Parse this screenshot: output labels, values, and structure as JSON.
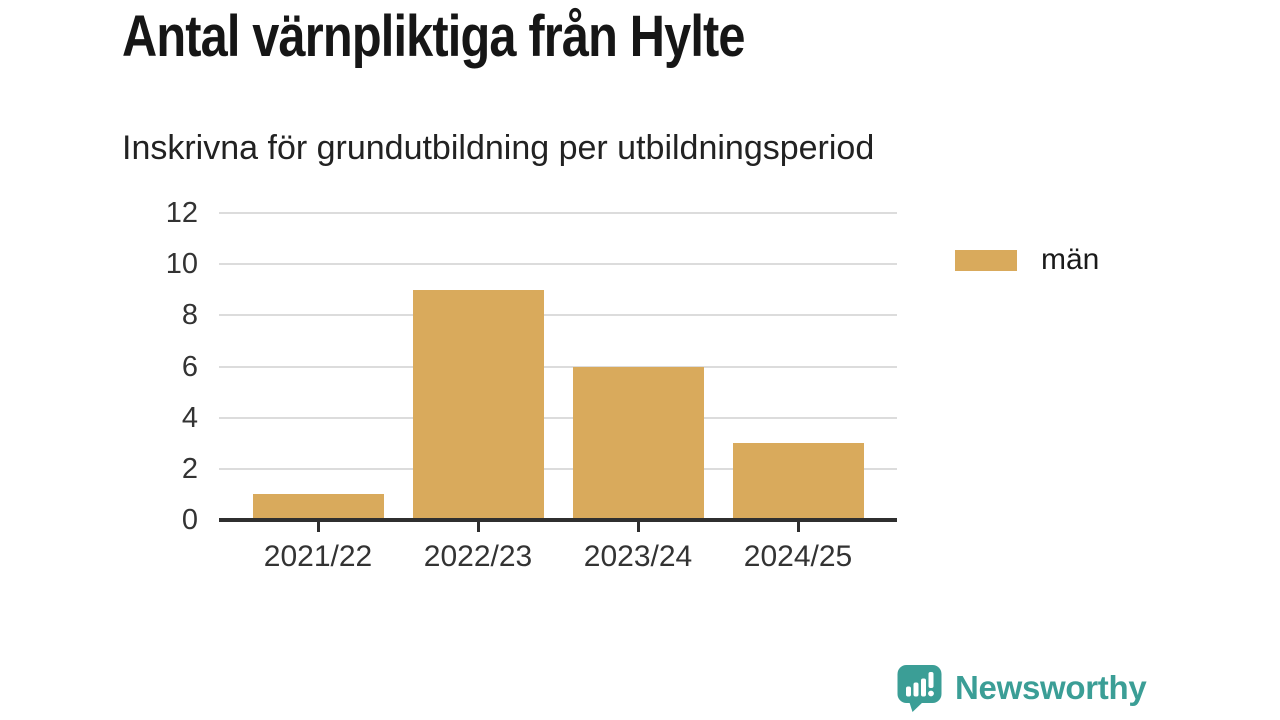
{
  "header": {
    "title": "Antal värnpliktiga från Hylte",
    "subtitle": "Inskrivna för grundutbildning per utbildningsperiod"
  },
  "chart_data": {
    "type": "bar",
    "title": "Antal värnpliktiga från Hylte",
    "subtitle": "Inskrivna för grundutbildning per utbildningsperiod",
    "categories": [
      "2021/22",
      "2022/23",
      "2023/24",
      "2024/25"
    ],
    "series": [
      {
        "name": "män",
        "values": [
          1,
          9,
          6,
          3
        ],
        "color": "#d9aa5c"
      }
    ],
    "xlabel": "",
    "ylabel": "",
    "ylim": [
      0,
      12
    ],
    "yticks": [
      0,
      2,
      4,
      6,
      8,
      10,
      12
    ],
    "grid": true,
    "legend_position": "right"
  },
  "legend": {
    "items": [
      {
        "label": "män",
        "color": "#d9aa5c"
      }
    ]
  },
  "footer": {
    "brand": "Newsworthy",
    "logo_icon": "newsworthy-speech-bubble-bar-chart-icon"
  },
  "colors": {
    "bar": "#d9aa5c",
    "brand_teal": "#3b9e96",
    "grid": "#dcdcdc",
    "axis": "#2f2f2f",
    "tick_label": "#333333",
    "title_text": "#161616"
  }
}
